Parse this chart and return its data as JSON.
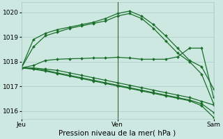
{
  "xlabel": "Pression niveau de la mer( hPa )",
  "background_color": "#cce8e0",
  "grid_color": "#aacccc",
  "line_color": "#1a6e2a",
  "ylim": [
    1015.7,
    1020.4
  ],
  "y_ticks": [
    1016,
    1017,
    1018,
    1019,
    1020
  ],
  "x_ticks": [
    0,
    8,
    16
  ],
  "x_tick_labels": [
    "Jeu",
    "Ven",
    "Sam"
  ],
  "series": [
    [
      1017.75,
      1018.9,
      1019.15,
      1019.3,
      1019.4,
      1019.5,
      1019.6,
      1019.75,
      1019.95,
      1020.05,
      1019.85,
      1019.5,
      1019.05,
      1018.55,
      1018.05,
      1017.8,
      1016.9
    ],
    [
      1017.75,
      1018.6,
      1019.05,
      1019.2,
      1019.35,
      1019.45,
      1019.55,
      1019.65,
      1019.85,
      1019.95,
      1019.75,
      1019.35,
      1018.85,
      1018.35,
      1018.0,
      1017.5,
      1016.3
    ],
    [
      1017.75,
      1017.85,
      1018.05,
      1018.1,
      1018.12,
      1018.13,
      1018.15,
      1018.15,
      1018.18,
      1018.15,
      1018.1,
      1018.1,
      1018.1,
      1018.2,
      1018.55,
      1018.55,
      1016.55
    ],
    [
      1017.75,
      1017.75,
      1017.7,
      1017.65,
      1017.55,
      1017.45,
      1017.35,
      1017.25,
      1017.15,
      1017.05,
      1016.95,
      1016.85,
      1016.75,
      1016.65,
      1016.55,
      1016.4,
      1016.25
    ],
    [
      1017.75,
      1017.72,
      1017.65,
      1017.55,
      1017.45,
      1017.35,
      1017.25,
      1017.15,
      1017.05,
      1016.95,
      1016.85,
      1016.75,
      1016.65,
      1016.55,
      1016.45,
      1016.3,
      1015.95
    ],
    [
      1017.75,
      1017.7,
      1017.62,
      1017.52,
      1017.42,
      1017.32,
      1017.22,
      1017.12,
      1017.02,
      1016.92,
      1016.82,
      1016.72,
      1016.62,
      1016.52,
      1016.42,
      1016.22,
      1015.75
    ]
  ],
  "n_points": 17,
  "vline_color": "#336633",
  "xlabel_fontsize": 7.5,
  "tick_fontsize": 6.5
}
